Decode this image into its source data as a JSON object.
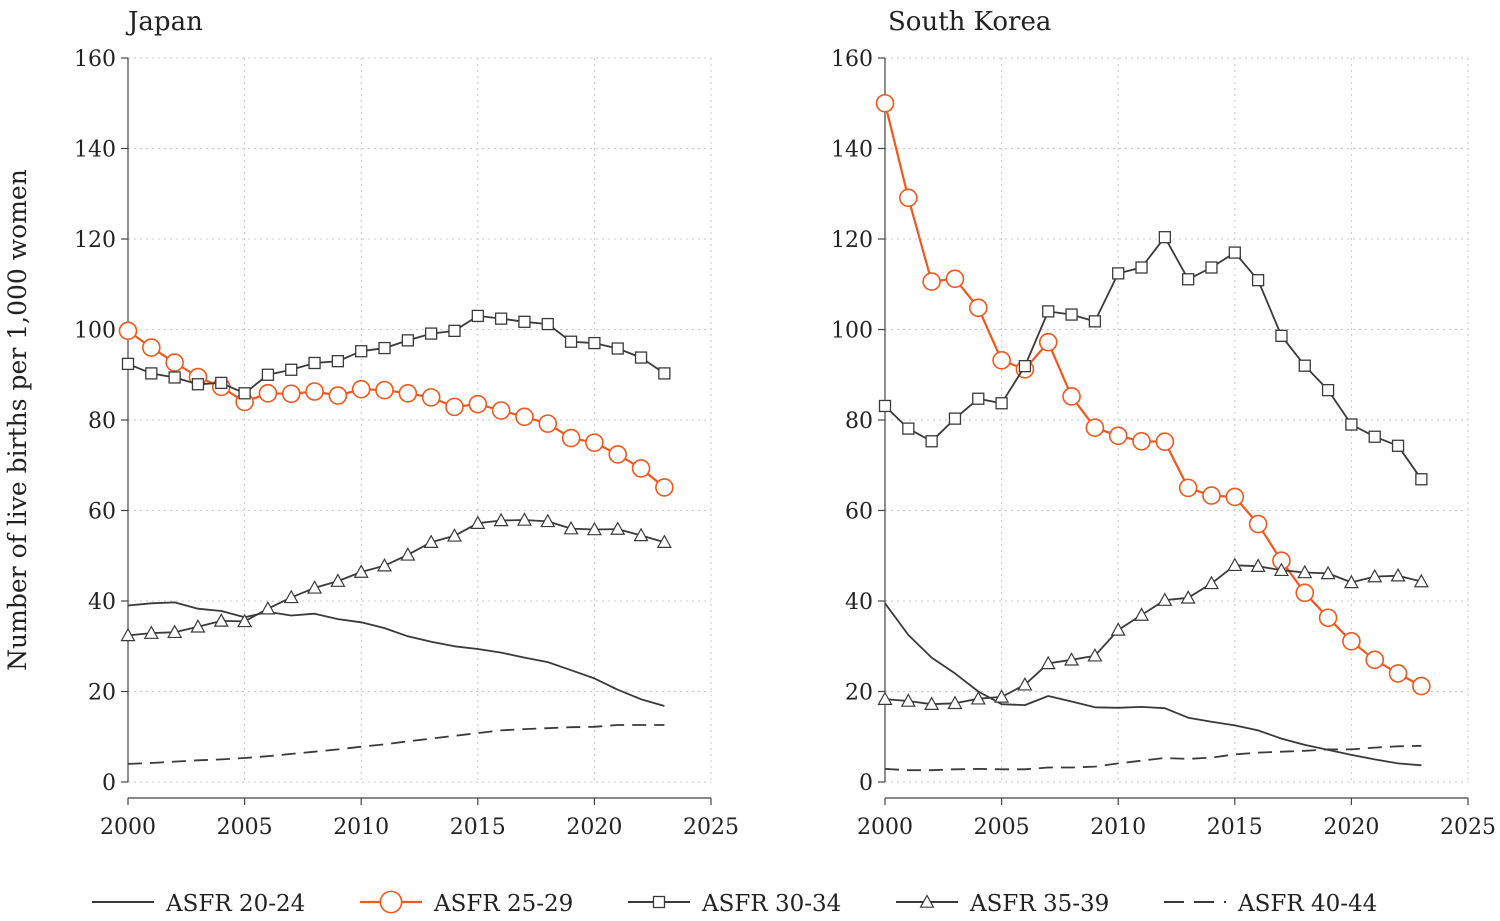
{
  "ylabel": "Number of live births per 1,000 women",
  "colors": {
    "dark": "#3a3a3a",
    "orange": "#f0581e",
    "grid": "#c8c8c8"
  },
  "legend": [
    {
      "label": "ASFR 20-24",
      "style": "solid"
    },
    {
      "label": "ASFR 25-29",
      "style": "circle"
    },
    {
      "label": "ASFR 30-34",
      "style": "square"
    },
    {
      "label": "ASFR 35-39",
      "style": "triangle"
    },
    {
      "label": "ASFR 40-44",
      "style": "dashed"
    }
  ],
  "chart_data": [
    {
      "type": "line",
      "title": "Japan",
      "xlim": [
        2000,
        2025
      ],
      "ylim": [
        0,
        160
      ],
      "xticks": [
        2000,
        2005,
        2010,
        2015,
        2020,
        2025
      ],
      "yticks": [
        0,
        20,
        40,
        60,
        80,
        100,
        120,
        140,
        160
      ],
      "grid": true,
      "x": [
        2000,
        2001,
        2002,
        2003,
        2004,
        2005,
        2006,
        2007,
        2008,
        2009,
        2010,
        2011,
        2012,
        2013,
        2014,
        2015,
        2016,
        2017,
        2018,
        2019,
        2020,
        2021,
        2022,
        2023
      ],
      "series": [
        {
          "name": "ASFR 20-24",
          "values": [
            39.0,
            39.5,
            39.7,
            38.3,
            37.8,
            36.4,
            37.6,
            36.8,
            37.2,
            36.0,
            35.3,
            34.0,
            32.2,
            31.0,
            30.0,
            29.4,
            28.6,
            27.5,
            26.5,
            24.7,
            22.9,
            20.4,
            18.3,
            16.8
          ]
        },
        {
          "name": "ASFR 25-29",
          "values": [
            99.7,
            96.0,
            92.7,
            89.5,
            87.3,
            84.0,
            85.9,
            85.8,
            86.3,
            85.4,
            86.8,
            86.6,
            85.9,
            85.0,
            82.9,
            83.5,
            82.1,
            80.7,
            79.2,
            76.0,
            75.0,
            72.4,
            69.3,
            65.1
          ]
        },
        {
          "name": "ASFR 30-34",
          "values": [
            92.4,
            90.3,
            89.4,
            87.9,
            88.2,
            85.9,
            90.0,
            91.1,
            92.6,
            93.0,
            95.2,
            95.9,
            97.6,
            99.1,
            99.7,
            103.0,
            102.4,
            101.7,
            101.2,
            97.3,
            97.0,
            95.8,
            93.8,
            90.3
          ]
        },
        {
          "name": "ASFR 35-39",
          "values": [
            32.4,
            32.9,
            33.1,
            34.3,
            35.6,
            35.5,
            38.3,
            40.8,
            42.9,
            44.4,
            46.4,
            47.8,
            50.2,
            53.0,
            54.4,
            57.2,
            57.8,
            57.9,
            57.6,
            56.0,
            55.8,
            55.9,
            54.5,
            53.0
          ]
        },
        {
          "name": "ASFR 40-44",
          "values": [
            4.0,
            4.2,
            4.5,
            4.8,
            5.0,
            5.3,
            5.7,
            6.2,
            6.7,
            7.2,
            7.8,
            8.3,
            9.0,
            9.6,
            10.2,
            10.8,
            11.4,
            11.7,
            11.9,
            12.1,
            12.2,
            12.6,
            12.6,
            12.6
          ]
        }
      ]
    },
    {
      "type": "line",
      "title": "South Korea",
      "xlim": [
        2000,
        2025
      ],
      "ylim": [
        0,
        160
      ],
      "xticks": [
        2000,
        2005,
        2010,
        2015,
        2020,
        2025
      ],
      "yticks": [
        0,
        20,
        40,
        60,
        80,
        100,
        120,
        140,
        160
      ],
      "grid": true,
      "x": [
        2000,
        2001,
        2002,
        2003,
        2004,
        2005,
        2006,
        2007,
        2008,
        2009,
        2010,
        2011,
        2012,
        2013,
        2014,
        2015,
        2016,
        2017,
        2018,
        2019,
        2020,
        2021,
        2022,
        2023
      ],
      "series": [
        {
          "name": "ASFR 20-24",
          "values": [
            39.5,
            32.5,
            27.5,
            24.0,
            20.0,
            17.2,
            17.0,
            19.0,
            17.8,
            16.5,
            16.4,
            16.6,
            16.3,
            14.2,
            13.3,
            12.5,
            11.4,
            9.6,
            8.2,
            7.1,
            6.0,
            5.0,
            4.1,
            3.7
          ]
        },
        {
          "name": "ASFR 25-29",
          "values": [
            150.0,
            129.1,
            110.6,
            111.2,
            104.8,
            93.2,
            91.2,
            97.2,
            85.2,
            78.3,
            76.5,
            75.3,
            75.2,
            65.0,
            63.3,
            63.0,
            57.0,
            48.9,
            41.8,
            36.3,
            31.1,
            27.0,
            24.0,
            21.2
          ]
        },
        {
          "name": "ASFR 30-34",
          "values": [
            83.1,
            78.1,
            75.3,
            80.3,
            84.7,
            83.7,
            91.9,
            104.0,
            103.3,
            101.8,
            112.4,
            113.7,
            120.4,
            111.1,
            113.7,
            117.0,
            110.9,
            98.6,
            92.0,
            86.6,
            79.0,
            76.3,
            74.3,
            66.9
          ]
        },
        {
          "name": "ASFR 35-39",
          "values": [
            18.3,
            17.9,
            17.2,
            17.4,
            18.4,
            18.8,
            21.5,
            26.2,
            27.0,
            27.9,
            33.6,
            36.9,
            40.2,
            40.7,
            43.9,
            47.9,
            47.7,
            46.8,
            46.3,
            46.1,
            44.1,
            45.4,
            45.6,
            44.3
          ]
        },
        {
          "name": "ASFR 40-44",
          "values": [
            2.9,
            2.6,
            2.6,
            2.8,
            2.9,
            2.8,
            2.8,
            3.2,
            3.2,
            3.4,
            4.1,
            4.7,
            5.3,
            5.1,
            5.4,
            6.1,
            6.5,
            6.7,
            6.9,
            7.2,
            7.2,
            7.6,
            7.9,
            8.0
          ]
        }
      ]
    }
  ]
}
